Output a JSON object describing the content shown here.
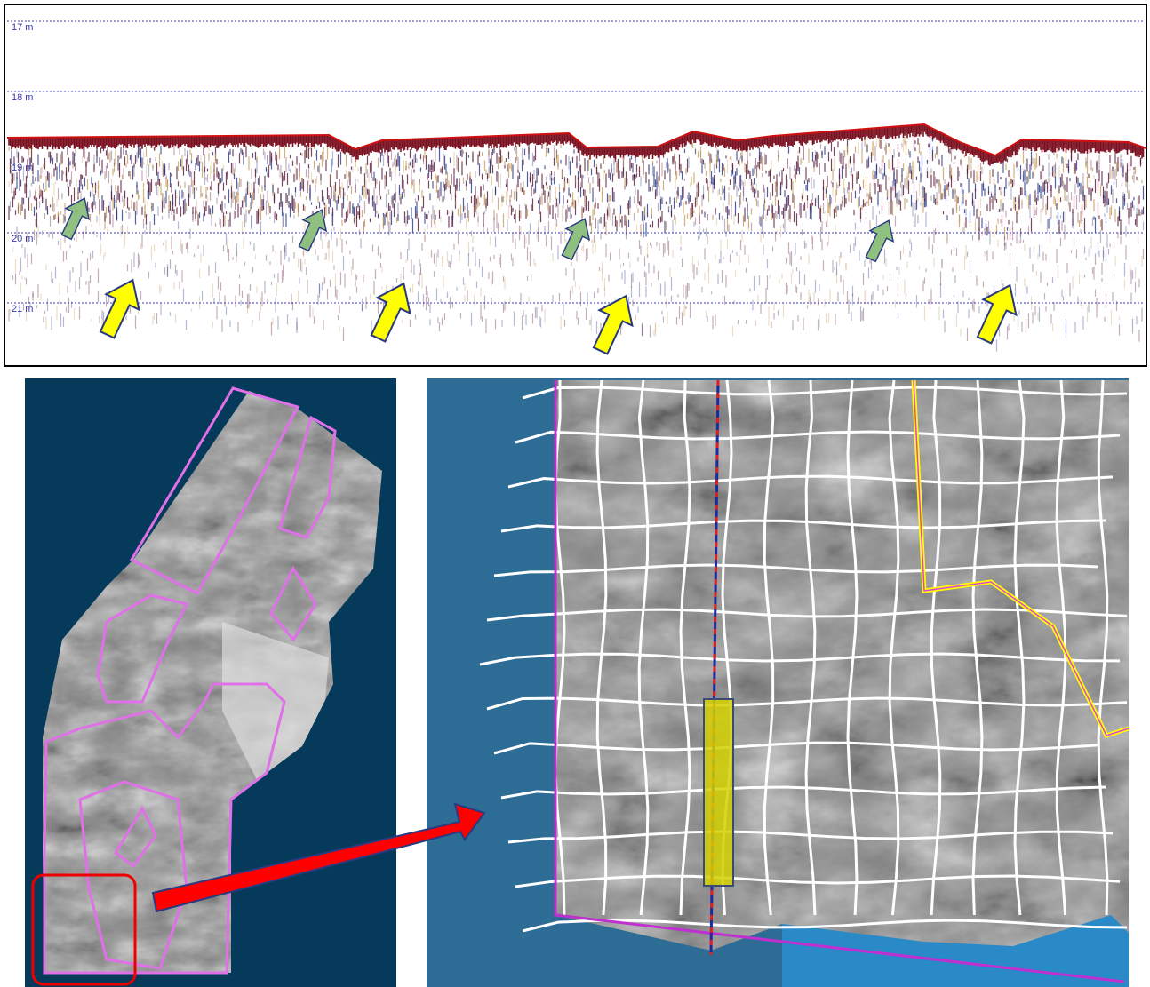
{
  "profile": {
    "depth_labels": [
      "17 m",
      "18 m",
      "19 m",
      "20 m",
      "21 m"
    ]
  }
}
